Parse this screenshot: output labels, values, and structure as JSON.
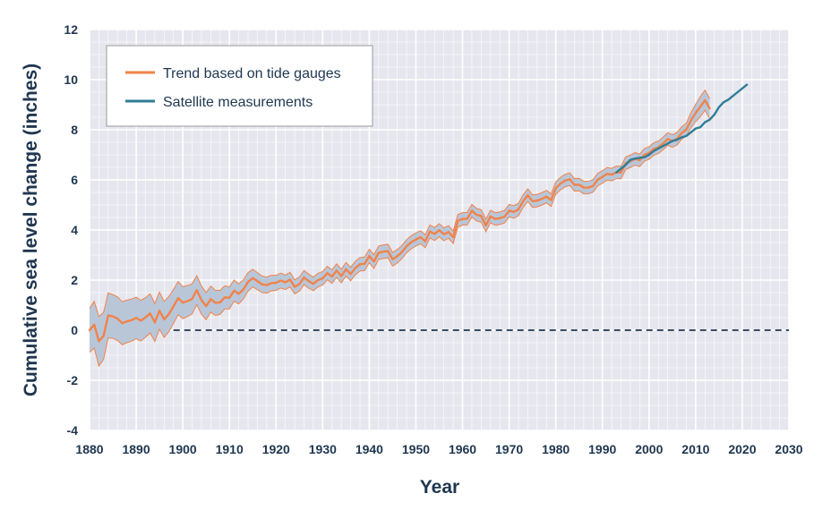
{
  "chart_data": {
    "type": "line",
    "title": "",
    "xlabel": "Year",
    "ylabel": "Cumulative sea level change (inches)",
    "xlim": [
      1880,
      2030
    ],
    "ylim": [
      -4,
      12
    ],
    "x_ticks": [
      1880,
      1890,
      1900,
      1910,
      1920,
      1930,
      1940,
      1950,
      1960,
      1970,
      1980,
      1990,
      2000,
      2010,
      2020,
      2030
    ],
    "y_ticks": [
      -4,
      -2,
      0,
      2,
      4,
      6,
      8,
      10,
      12
    ],
    "grid": true,
    "zero_line": {
      "y": 0,
      "style": "dashed",
      "x_start": 1898
    },
    "legend_position": "top-left",
    "series": [
      {
        "name": "Trend based on tide gauges",
        "color": "#f0834a",
        "band_color": "#b9c6d8",
        "x": [
          1880,
          1881,
          1882,
          1883,
          1884,
          1885,
          1886,
          1887,
          1888,
          1889,
          1890,
          1891,
          1892,
          1893,
          1894,
          1895,
          1896,
          1897,
          1898,
          1899,
          1900,
          1901,
          1902,
          1903,
          1904,
          1905,
          1906,
          1907,
          1908,
          1909,
          1910,
          1911,
          1912,
          1913,
          1914,
          1915,
          1916,
          1917,
          1918,
          1919,
          1920,
          1921,
          1922,
          1923,
          1924,
          1925,
          1926,
          1927,
          1928,
          1929,
          1930,
          1931,
          1932,
          1933,
          1934,
          1935,
          1936,
          1937,
          1938,
          1939,
          1940,
          1941,
          1942,
          1943,
          1944,
          1945,
          1946,
          1947,
          1948,
          1949,
          1950,
          1951,
          1952,
          1953,
          1954,
          1955,
          1956,
          1957,
          1958,
          1959,
          1960,
          1961,
          1962,
          1963,
          1964,
          1965,
          1966,
          1967,
          1968,
          1969,
          1970,
          1971,
          1972,
          1973,
          1974,
          1975,
          1976,
          1977,
          1978,
          1979,
          1980,
          1981,
          1982,
          1983,
          1984,
          1985,
          1986,
          1987,
          1988,
          1989,
          1990,
          1991,
          1992,
          1993,
          1994,
          1995,
          1996,
          1997,
          1998,
          1999,
          2000,
          2001,
          2002,
          2003,
          2004,
          2005,
          2006,
          2007,
          2008,
          2009,
          2010,
          2011,
          2012,
          2013
        ],
        "values": [
          0.0,
          0.22,
          -0.44,
          -0.23,
          0.59,
          0.55,
          0.46,
          0.28,
          0.35,
          0.4,
          0.49,
          0.38,
          0.51,
          0.67,
          0.31,
          0.78,
          0.43,
          0.64,
          0.95,
          1.28,
          1.1,
          1.16,
          1.25,
          1.6,
          1.2,
          0.96,
          1.24,
          1.09,
          1.11,
          1.31,
          1.29,
          1.58,
          1.45,
          1.63,
          1.93,
          2.08,
          1.96,
          1.83,
          1.8,
          1.88,
          1.89,
          1.98,
          1.91,
          2.02,
          1.73,
          1.84,
          2.1,
          1.96,
          1.85,
          2.0,
          2.07,
          2.28,
          2.14,
          2.38,
          2.16,
          2.43,
          2.24,
          2.48,
          2.63,
          2.65,
          2.96,
          2.74,
          3.09,
          3.13,
          3.16,
          2.83,
          2.95,
          3.12,
          3.35,
          3.51,
          3.62,
          3.71,
          3.55,
          3.94,
          3.84,
          3.99,
          3.83,
          3.92,
          3.71,
          4.37,
          4.44,
          4.45,
          4.77,
          4.61,
          4.56,
          4.18,
          4.54,
          4.44,
          4.47,
          4.53,
          4.77,
          4.72,
          4.82,
          5.15,
          5.39,
          5.15,
          5.17,
          5.24,
          5.33,
          5.19,
          5.67,
          5.85,
          5.97,
          6.03,
          5.8,
          5.81,
          5.69,
          5.69,
          5.76,
          6.01,
          6.12,
          6.24,
          6.21,
          6.3,
          6.29,
          6.67,
          6.74,
          6.84,
          6.78,
          7.0,
          7.07,
          7.23,
          7.3,
          7.45,
          7.63,
          7.55,
          7.64,
          7.87,
          8.01,
          8.38,
          8.67,
          8.92,
          9.18,
          8.85
        ],
        "uncertainty": [
          0.88,
          0.93,
          0.99,
          0.94,
          0.9,
          0.87,
          0.87,
          0.86,
          0.85,
          0.84,
          0.83,
          0.81,
          0.79,
          0.78,
          0.76,
          0.74,
          0.72,
          0.7,
          0.68,
          0.66,
          0.64,
          0.62,
          0.6,
          0.58,
          0.56,
          0.54,
          0.52,
          0.5,
          0.48,
          0.46,
          0.44,
          0.42,
          0.4,
          0.38,
          0.37,
          0.35,
          0.34,
          0.33,
          0.32,
          0.31,
          0.3,
          0.3,
          0.29,
          0.29,
          0.28,
          0.28,
          0.28,
          0.28,
          0.27,
          0.27,
          0.27,
          0.27,
          0.27,
          0.27,
          0.27,
          0.27,
          0.27,
          0.27,
          0.27,
          0.27,
          0.27,
          0.27,
          0.27,
          0.27,
          0.27,
          0.27,
          0.27,
          0.26,
          0.26,
          0.26,
          0.26,
          0.26,
          0.26,
          0.26,
          0.26,
          0.26,
          0.26,
          0.25,
          0.25,
          0.25,
          0.25,
          0.25,
          0.25,
          0.25,
          0.25,
          0.25,
          0.25,
          0.25,
          0.25,
          0.25,
          0.25,
          0.25,
          0.25,
          0.25,
          0.25,
          0.25,
          0.25,
          0.25,
          0.25,
          0.25,
          0.25,
          0.25,
          0.25,
          0.25,
          0.25,
          0.25,
          0.25,
          0.25,
          0.25,
          0.25,
          0.25,
          0.25,
          0.25,
          0.25,
          0.25,
          0.25,
          0.25,
          0.25,
          0.25,
          0.25,
          0.25,
          0.25,
          0.25,
          0.25,
          0.25,
          0.25,
          0.25,
          0.25,
          0.25,
          0.3,
          0.35,
          0.4,
          0.4,
          0.4
        ]
      },
      {
        "name": "Satellite measurements",
        "color": "#2f7d95",
        "x": [
          1993,
          1994,
          1995,
          1996,
          1997,
          1998,
          1999,
          2000,
          2001,
          2002,
          2003,
          2004,
          2005,
          2006,
          2007,
          2008,
          2009,
          2010,
          2011,
          2012,
          2013,
          2014,
          2015,
          2016,
          2017,
          2018,
          2019,
          2020,
          2021
        ],
        "values": [
          6.3,
          6.45,
          6.6,
          6.8,
          6.85,
          6.88,
          6.9,
          7.0,
          7.15,
          7.25,
          7.35,
          7.45,
          7.55,
          7.6,
          7.7,
          7.75,
          7.9,
          8.05,
          8.1,
          8.3,
          8.4,
          8.6,
          8.9,
          9.1,
          9.2,
          9.35,
          9.5,
          9.65,
          9.8
        ]
      }
    ]
  },
  "legend": {
    "items": [
      {
        "label": "Trend based on tide gauges",
        "color": "#f0834a"
      },
      {
        "label": "Satellite measurements",
        "color": "#2f7d95"
      }
    ]
  }
}
